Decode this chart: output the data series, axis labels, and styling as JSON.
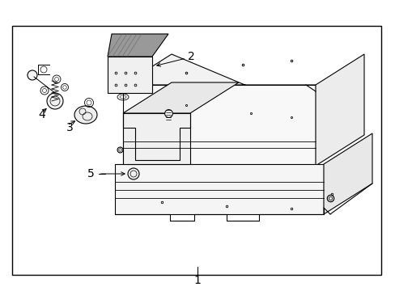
{
  "background_color": "#ffffff",
  "border_color": "#000000",
  "line_color": "#000000",
  "label_color": "#000000",
  "figsize": [
    4.89,
    3.6
  ],
  "dpi": 100,
  "labels": [
    "1",
    "2",
    "3",
    "4",
    "5"
  ],
  "font_size": 10
}
